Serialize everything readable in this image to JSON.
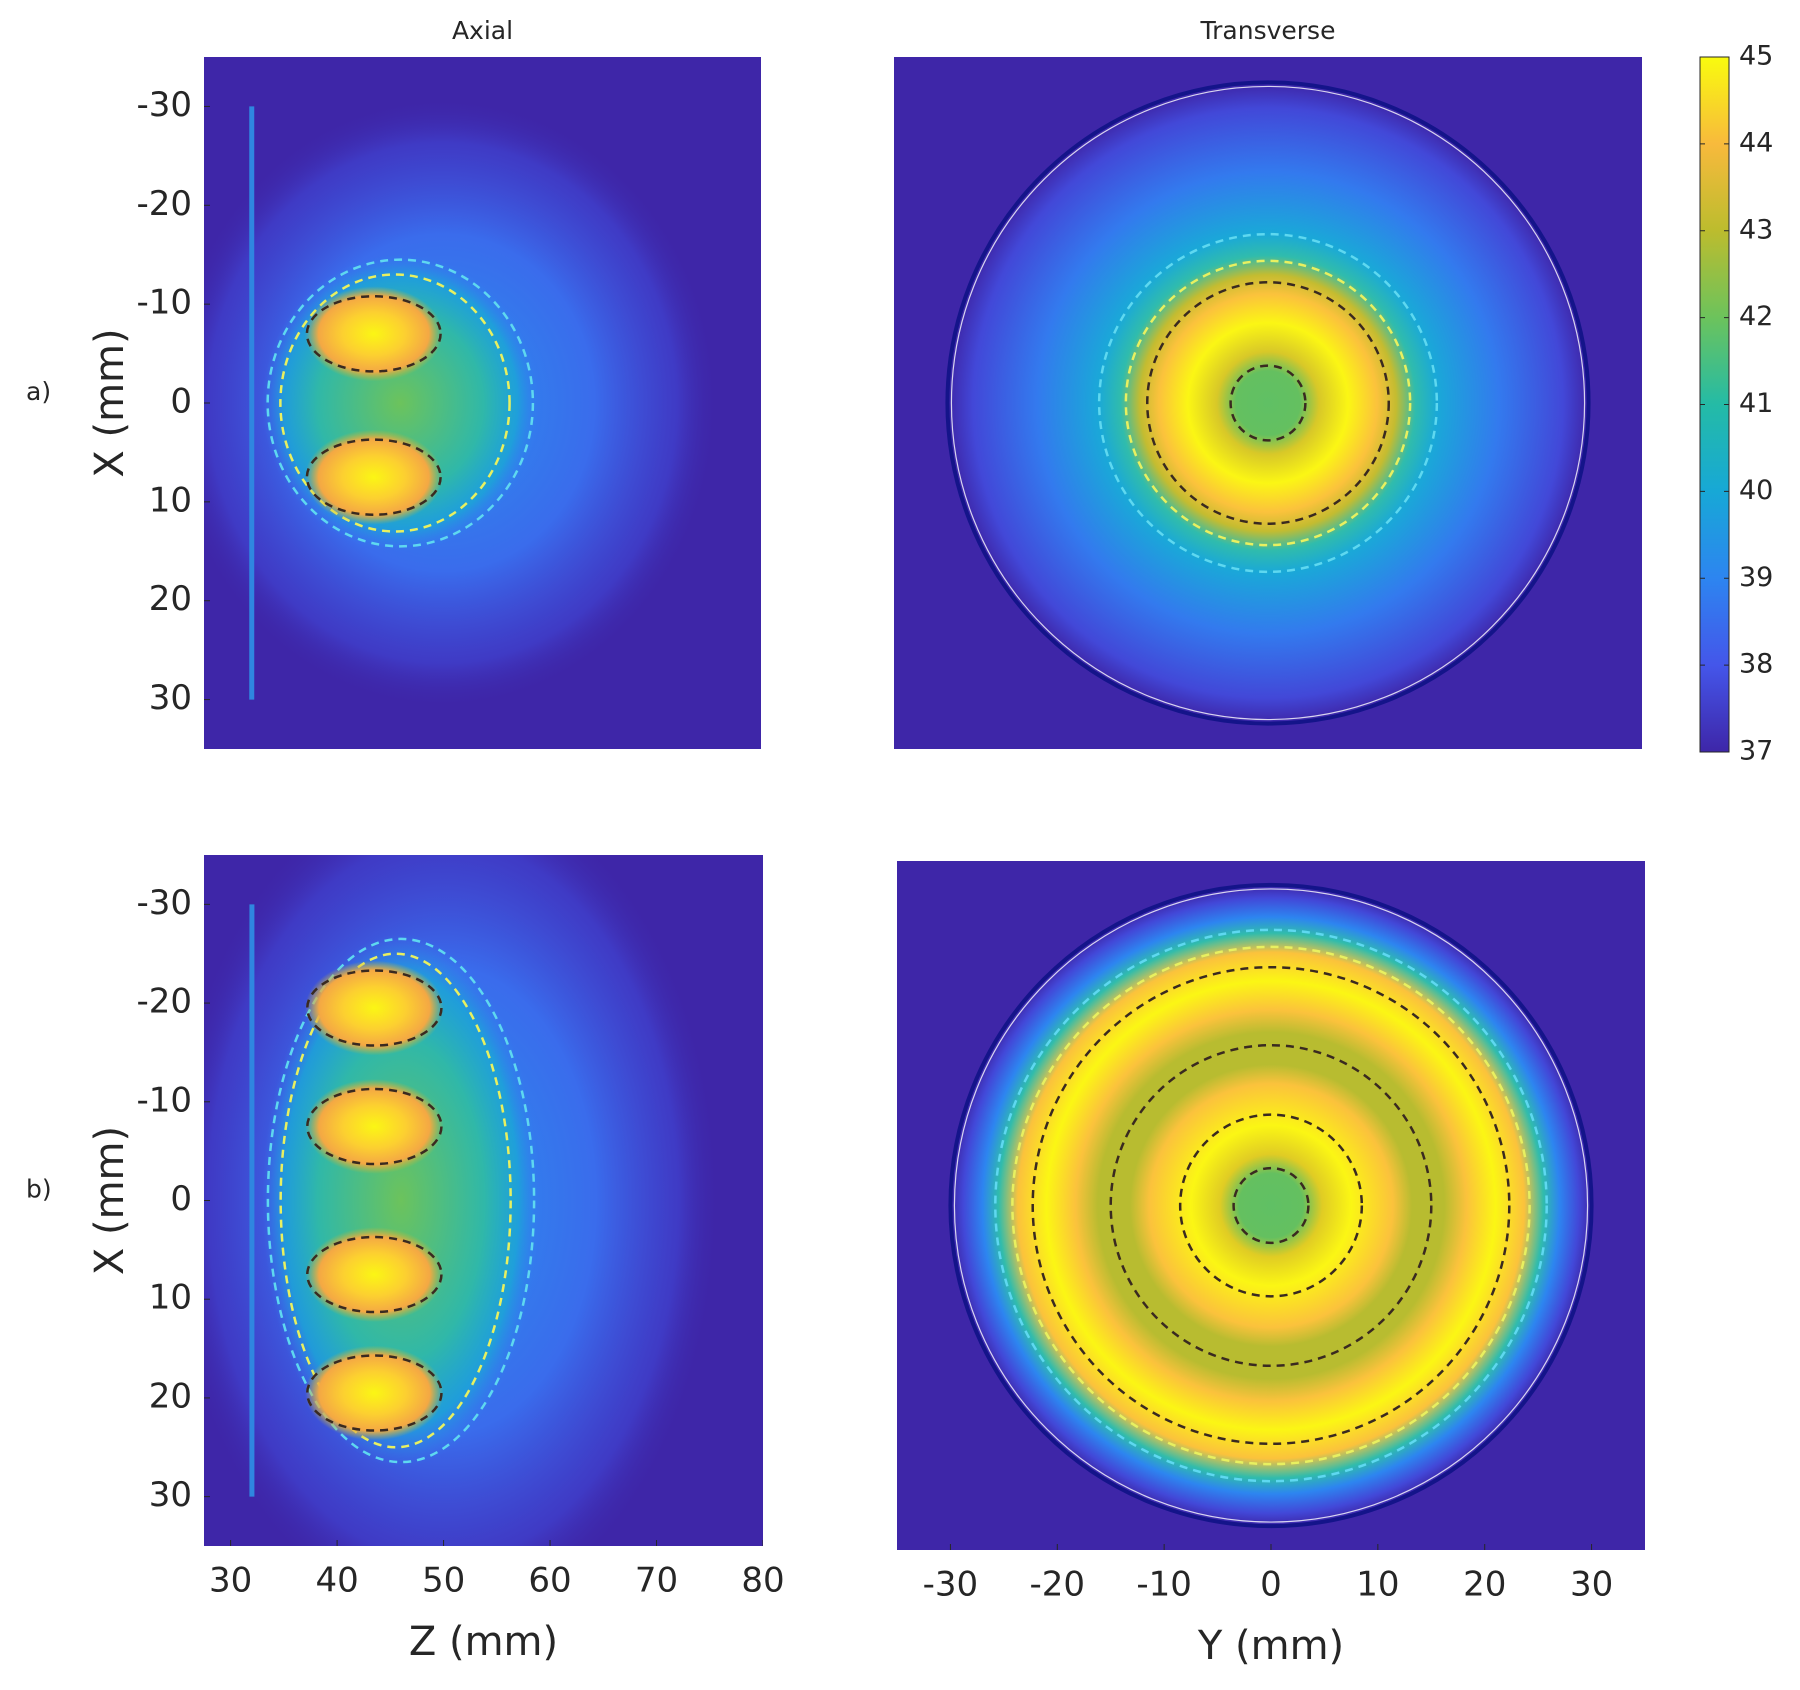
{
  "chart_data": [
    {
      "type": "heatmap",
      "title": "Axial",
      "panel_label": "a)",
      "ylabel": "X (mm)",
      "xlim": [
        27.5,
        80
      ],
      "ylim": [
        -35,
        35
      ],
      "y_reversed": true,
      "yticks": [
        -30,
        -20,
        -10,
        0,
        10,
        20,
        30
      ]
    },
    {
      "type": "heatmap",
      "title": "Transverse",
      "xlim": [
        -35,
        35
      ],
      "ylim": [
        -35,
        35
      ],
      "y_reversed": true
    },
    {
      "type": "heatmap",
      "panel_label": "b)",
      "xlabel": "Z (mm)",
      "ylabel": "X (mm)",
      "xlim": [
        27.5,
        80
      ],
      "ylim": [
        -35,
        35
      ],
      "y_reversed": true,
      "xticks": [
        30,
        40,
        50,
        60,
        70,
        80
      ],
      "yticks": [
        -30,
        -20,
        -10,
        0,
        10,
        20,
        30
      ]
    },
    {
      "type": "heatmap",
      "xlabel": "Y (mm)",
      "xlim": [
        -35,
        35
      ],
      "ylim": [
        -35,
        35
      ],
      "y_reversed": true,
      "xticks": [
        -30,
        -20,
        -10,
        0,
        10,
        20,
        30
      ]
    },
    {
      "type": "colorbar",
      "clim": [
        37,
        45
      ],
      "ticks": [
        37,
        38,
        39,
        40,
        41,
        42,
        43,
        44,
        45
      ],
      "colormap": [
        "#3e26a8",
        "#4456ea",
        "#2d85f0",
        "#17a8d6",
        "#24bba6",
        "#6cc35c",
        "#bcbc2e",
        "#f8ba3c",
        "#f9fb0e"
      ]
    }
  ]
}
